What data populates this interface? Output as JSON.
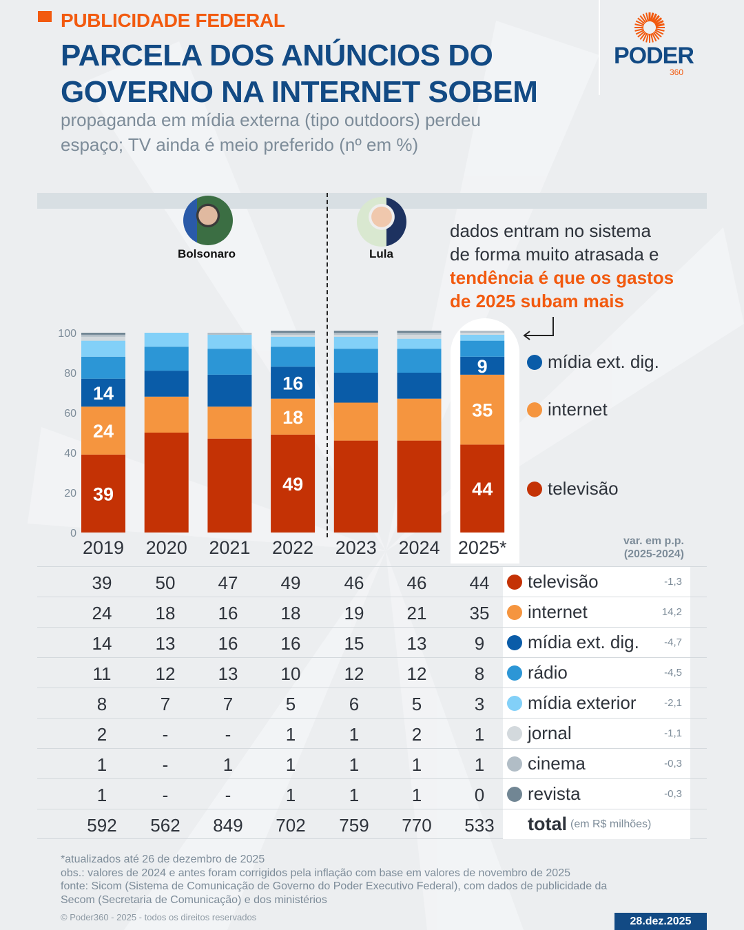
{
  "header": {
    "kicker": "PUBLICIDADE FEDERAL",
    "title_line1": "PARCELA DOS ANÚNCIOS DO",
    "title_line2": "GOVERNO NA INTERNET SOBEM",
    "subtitle_line1": "propaganda em mídia externa (tipo outdoors) perdeu",
    "subtitle_line2": "espaço; TV ainda é meio preferido (nº em %)"
  },
  "logo": {
    "word": "PODER",
    "number": "360",
    "icon": "sun-rays-icon"
  },
  "presidents": [
    {
      "name": "Bolsonaro",
      "icon": "bolsonaro-avatar"
    },
    {
      "name": "Lula",
      "icon": "lula-avatar"
    }
  ],
  "annotation": {
    "line1": "dados entram no sistema",
    "line2": "de forma muito atrasada e",
    "line3": "tendência é que os gastos",
    "line4": "de 2025 subam mais"
  },
  "legend": [
    {
      "label": "mídia ext. dig.",
      "color": "#0a5ca8"
    },
    {
      "label": "internet",
      "color": "#f5953f"
    },
    {
      "label": "televisão",
      "color": "#c43205"
    }
  ],
  "chart_data": {
    "type": "bar",
    "stacked": true,
    "title": "PARCELA DOS ANÚNCIOS DO GOVERNO NA INTERNET SOBEM",
    "subtitle": "propaganda em mídia externa (tipo outdoors) perdeu espaço; TV ainda é meio preferido (nº em %)",
    "xlabel": "",
    "ylabel": "%",
    "ylim": [
      0,
      100
    ],
    "yticks": [
      0,
      20,
      40,
      60,
      80,
      100
    ],
    "grid": false,
    "legend_position": "right",
    "categories": [
      "2019",
      "2020",
      "2021",
      "2022",
      "2023",
      "2024",
      "2025*"
    ],
    "highlight_category": "2025*",
    "era_split_after": "2022",
    "series": [
      {
        "name": "televisão",
        "color": "#c43205",
        "values": [
          39,
          50,
          47,
          49,
          46,
          46,
          44
        ],
        "variation": "-1,3"
      },
      {
        "name": "internet",
        "color": "#f5953f",
        "values": [
          24,
          18,
          16,
          18,
          19,
          21,
          35
        ],
        "variation": "14,2"
      },
      {
        "name": "mídia ext. dig.",
        "color": "#0a5ca8",
        "values": [
          14,
          13,
          16,
          16,
          15,
          13,
          9
        ],
        "variation": "-4,7"
      },
      {
        "name": "rádio",
        "color": "#2c96d6",
        "values": [
          11,
          12,
          13,
          10,
          12,
          12,
          8
        ],
        "variation": "-4,5"
      },
      {
        "name": "mídia exterior",
        "color": "#82d0f8",
        "values": [
          8,
          7,
          7,
          5,
          6,
          5,
          3
        ],
        "variation": "-2,1"
      },
      {
        "name": "jornal",
        "color": "#d3d9dd",
        "values": [
          2,
          0,
          0,
          1,
          1,
          2,
          1
        ],
        "display": [
          "2",
          "-",
          "-",
          "1",
          "1",
          "2",
          "1"
        ],
        "variation": "-1,1"
      },
      {
        "name": "cinema",
        "color": "#b1bdc6",
        "values": [
          1,
          0,
          1,
          1,
          1,
          1,
          1
        ],
        "display": [
          "1",
          "-",
          "1",
          "1",
          "1",
          "1",
          "1"
        ],
        "variation": "-0,3"
      },
      {
        "name": "revista",
        "color": "#718694",
        "values": [
          1,
          0,
          0,
          1,
          1,
          1,
          0
        ],
        "display": [
          "1",
          "-",
          "-",
          "1",
          "1",
          "1",
          "0"
        ],
        "variation": "-0,3"
      }
    ],
    "bar_labels": [
      {
        "category": "2019",
        "series": [
          "televisão",
          "internet",
          "mídia ext. dig."
        ]
      },
      {
        "category": "2022",
        "series": [
          "televisão",
          "internet",
          "mídia ext. dig."
        ]
      },
      {
        "category": "2025*",
        "series": [
          "televisão",
          "internet",
          "mídia ext. dig."
        ]
      }
    ],
    "totals": {
      "label": "total",
      "unit": "(em R$ milhões)",
      "values": [
        "592",
        "562",
        "849",
        "702",
        "759",
        "770",
        "533"
      ]
    },
    "variation_header": [
      "var. em p.p.",
      "(2025-2024)"
    ]
  },
  "footer": {
    "note1": "*atualizados até 26 de dezembro de 2025",
    "note2": "obs.: valores de 2024 e antes foram corrigidos pela inflação com base em valores de novembro de 2025",
    "note3": "fonte: Sicom (Sistema de Comunicação de Governo do Poder Executivo Federal), com dados de publicidade da",
    "note4": "Secom (Secretaria de Comunicação) e dos ministérios",
    "copyright": "© Poder360 - 2025 - todos os direitos reservados",
    "date": "28.dez.2025"
  }
}
